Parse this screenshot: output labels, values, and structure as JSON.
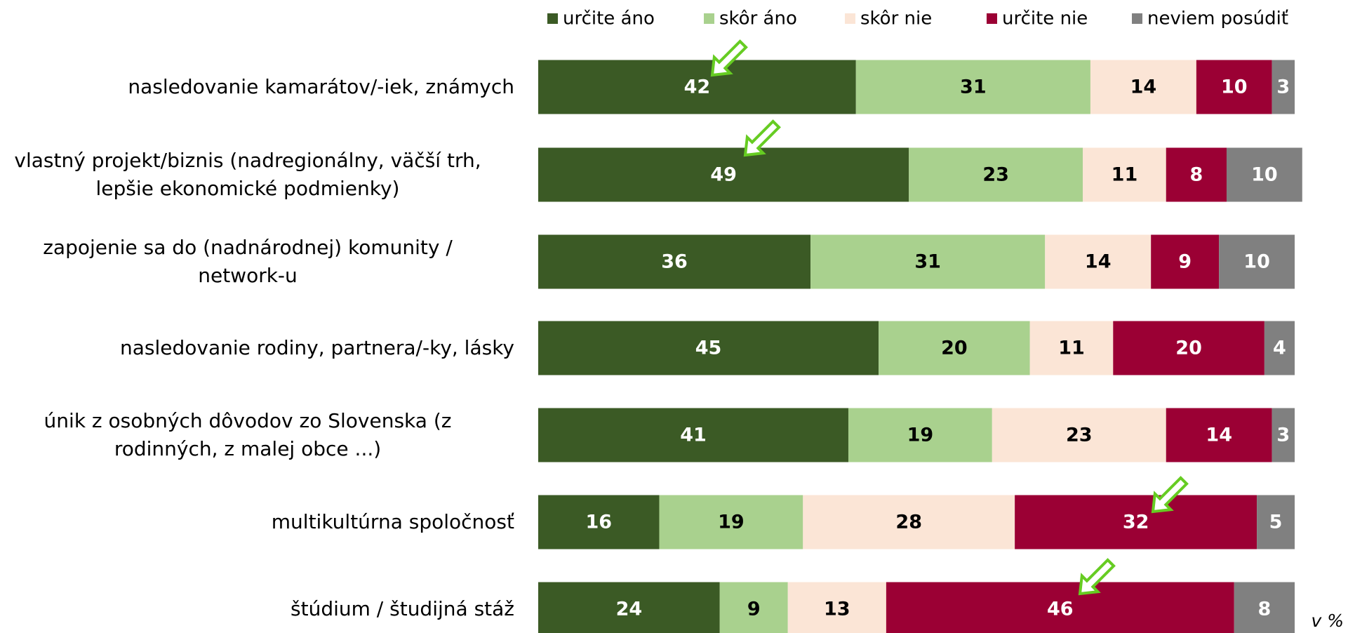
{
  "chart_data": {
    "type": "stacked_barh",
    "categories": [
      "nasledovanie kamarátov/-iek, známych",
      "vlastný projekt/biznis (nadregionálny, väčší trh,\nlepšie ekonomické podmienky)",
      "zapojenie sa do (nadnárodnej) komunity /\nnetwork-u",
      "nasledovanie rodiny, partnera/-ky, lásky",
      "únik z osobných dôvodov zo Slovenska (z\nrodinných, z malej obce ...)",
      "multikultúrna spoločnosť",
      "štúdium / študijná stáž"
    ],
    "series": [
      {
        "name": "určite áno",
        "color": "#3b5a25",
        "values": [
          42,
          49,
          36,
          45,
          41,
          16,
          24
        ]
      },
      {
        "name": "skôr áno",
        "color": "#a9d18e",
        "values": [
          31,
          23,
          31,
          20,
          19,
          19,
          9
        ]
      },
      {
        "name": "skôr nie",
        "color": "#fbe5d6",
        "values": [
          14,
          11,
          14,
          11,
          23,
          28,
          13
        ]
      },
      {
        "name": "určite nie",
        "color": "#9b0034",
        "values": [
          10,
          8,
          9,
          20,
          14,
          32,
          46
        ]
      },
      {
        "name": "neviem posúdiť",
        "color": "#808080",
        "values": [
          3,
          10,
          10,
          4,
          3,
          5,
          8
        ]
      }
    ],
    "xlim": [
      0,
      100
    ],
    "unit_note": "v %",
    "legend": "top"
  }
}
